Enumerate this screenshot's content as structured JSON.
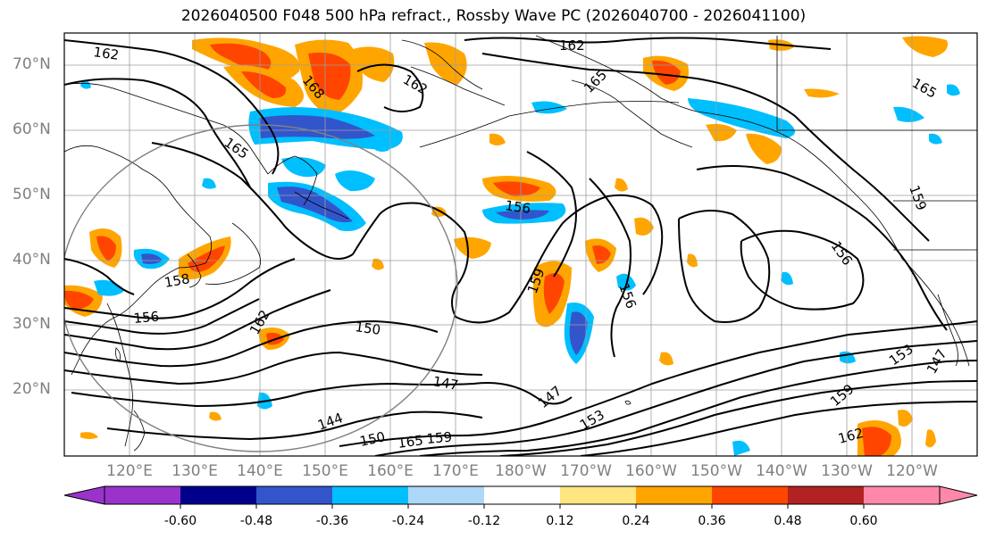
{
  "title": "2026040500 F048 500 hPa refract., Rossby Wave PC (2026040700 - 2026041100)",
  "lat_labels": [
    "70°N",
    "60°N",
    "50°N",
    "40°N",
    "30°N",
    "20°N"
  ],
  "lon_labels": [
    "120°E",
    "130°E",
    "140°E",
    "150°E",
    "160°E",
    "170°E",
    "180°W",
    "170°W",
    "160°W",
    "150°W",
    "140°W",
    "130°W",
    "120°W"
  ],
  "colorbar": {
    "tick_labels": [
      "-0.60",
      "-0.48",
      "-0.36",
      "-0.24",
      "-0.12",
      "0.12",
      "0.24",
      "0.36",
      "0.48",
      "0.60"
    ],
    "colors": [
      "#9933cc",
      "#00008b",
      "#3355cc",
      "#00bfff",
      "#add8f7",
      "#ffffff",
      "#ffe680",
      "#ffa500",
      "#ff4500",
      "#b22222",
      "#ff88aa"
    ]
  },
  "contour_labels": [
    "162",
    "162",
    "162",
    "168",
    "165",
    "165",
    "156",
    "159",
    "156",
    "156",
    "158",
    "150",
    "147",
    "147",
    "144",
    "153",
    "150",
    "156",
    "165",
    "162",
    "159",
    "159",
    "147",
    "153",
    "159",
    "162",
    "165"
  ],
  "colors": {
    "contour": "#000000",
    "grid": "#9e9e9e",
    "coast": "#000000",
    "circle": "#808080",
    "axis_text": "#808080"
  }
}
